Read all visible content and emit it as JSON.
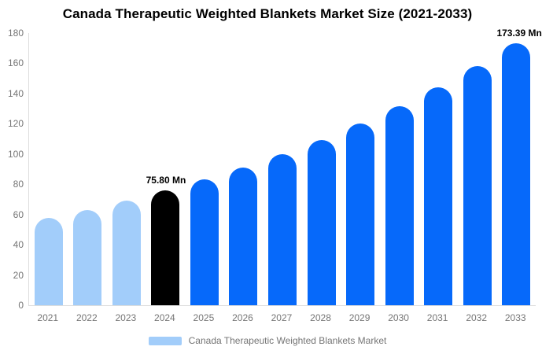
{
  "title": "Canada Therapeutic Weighted Blankets Market Size (2021-2033)",
  "colors": {
    "historical_bar": "#A2CDFA",
    "highlight_bar": "#000000",
    "forecast_bar": "#0669FA",
    "axis_line": "#DDDDDD",
    "tick_text": "#757575",
    "point_label_text": "#000000"
  },
  "chart_data": {
    "type": "bar",
    "title": "Canada Therapeutic Weighted Blankets Market Size (2021-2033)",
    "categories": [
      "2021",
      "2022",
      "2023",
      "2024",
      "2025",
      "2026",
      "2027",
      "2028",
      "2029",
      "2030",
      "2031",
      "2032",
      "2033"
    ],
    "values": [
      57.53,
      63.07,
      69.14,
      75.8,
      83.1,
      91.11,
      99.88,
      109.5,
      120.05,
      131.61,
      144.29,
      158.18,
      173.39
    ],
    "unit": "Mn",
    "xlabel": "",
    "ylabel": "",
    "ylim": [
      0,
      180
    ],
    "y_ticks": [
      0,
      20,
      40,
      60,
      80,
      100,
      120,
      140,
      160,
      180
    ],
    "grid": "off",
    "bar_colors": [
      "#A2CDFA",
      "#A2CDFA",
      "#A2CDFA",
      "#000000",
      "#0669FA",
      "#0669FA",
      "#0669FA",
      "#0669FA",
      "#0669FA",
      "#0669FA",
      "#0669FA",
      "#0669FA",
      "#0669FA"
    ],
    "point_labels": {
      "2024": "75.80 Mn",
      "2033": "173.39 Mn"
    },
    "legend": {
      "label": "Canada Therapeutic Weighted Blankets Market",
      "swatch_color": "#A2CDFA",
      "position": "bottom"
    }
  }
}
